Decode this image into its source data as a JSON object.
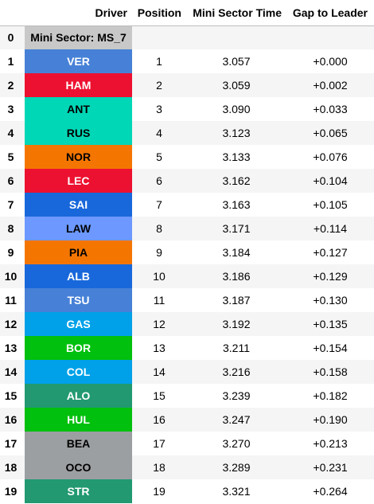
{
  "header": {
    "driver": "Driver",
    "position": "Position",
    "time": "Mini Sector Time",
    "gap": "Gap to Leader"
  },
  "mini_sector_label": "Mini Sector: MS_7",
  "rows": [
    {
      "index": "1",
      "driver": "VER",
      "position": "1",
      "time": "3.057",
      "gap": "+0.000",
      "bg": "#4781d7",
      "fg": "#ffffff"
    },
    {
      "index": "2",
      "driver": "HAM",
      "position": "2",
      "time": "3.059",
      "gap": "+0.002",
      "bg": "#ed1131",
      "fg": "#ffffff"
    },
    {
      "index": "3",
      "driver": "ANT",
      "position": "3",
      "time": "3.090",
      "gap": "+0.033",
      "bg": "#00d7b6",
      "fg": "#000000"
    },
    {
      "index": "4",
      "driver": "RUS",
      "position": "4",
      "time": "3.123",
      "gap": "+0.065",
      "bg": "#00d7b6",
      "fg": "#000000"
    },
    {
      "index": "5",
      "driver": "NOR",
      "position": "5",
      "time": "3.133",
      "gap": "+0.076",
      "bg": "#f47600",
      "fg": "#000000"
    },
    {
      "index": "6",
      "driver": "LEC",
      "position": "6",
      "time": "3.162",
      "gap": "+0.104",
      "bg": "#ed1131",
      "fg": "#ffffff"
    },
    {
      "index": "7",
      "driver": "SAI",
      "position": "7",
      "time": "3.163",
      "gap": "+0.105",
      "bg": "#1868db",
      "fg": "#ffffff"
    },
    {
      "index": "8",
      "driver": "LAW",
      "position": "8",
      "time": "3.171",
      "gap": "+0.114",
      "bg": "#6c98ff",
      "fg": "#000000"
    },
    {
      "index": "9",
      "driver": "PIA",
      "position": "9",
      "time": "3.184",
      "gap": "+0.127",
      "bg": "#f47600",
      "fg": "#000000"
    },
    {
      "index": "10",
      "driver": "ALB",
      "position": "10",
      "time": "3.186",
      "gap": "+0.129",
      "bg": "#1868db",
      "fg": "#ffffff"
    },
    {
      "index": "11",
      "driver": "TSU",
      "position": "11",
      "time": "3.187",
      "gap": "+0.130",
      "bg": "#4781d7",
      "fg": "#ffffff"
    },
    {
      "index": "12",
      "driver": "GAS",
      "position": "12",
      "time": "3.192",
      "gap": "+0.135",
      "bg": "#00a1e8",
      "fg": "#ffffff"
    },
    {
      "index": "13",
      "driver": "BOR",
      "position": "13",
      "time": "3.211",
      "gap": "+0.154",
      "bg": "#01c00e",
      "fg": "#ffffff"
    },
    {
      "index": "14",
      "driver": "COL",
      "position": "14",
      "time": "3.216",
      "gap": "+0.158",
      "bg": "#00a1e8",
      "fg": "#ffffff"
    },
    {
      "index": "15",
      "driver": "ALO",
      "position": "15",
      "time": "3.239",
      "gap": "+0.182",
      "bg": "#229971",
      "fg": "#ffffff"
    },
    {
      "index": "16",
      "driver": "HUL",
      "position": "16",
      "time": "3.247",
      "gap": "+0.190",
      "bg": "#01c00e",
      "fg": "#ffffff"
    },
    {
      "index": "17",
      "driver": "BEA",
      "position": "17",
      "time": "3.270",
      "gap": "+0.213",
      "bg": "#9c9fa2",
      "fg": "#000000"
    },
    {
      "index": "18",
      "driver": "OCO",
      "position": "18",
      "time": "3.289",
      "gap": "+0.231",
      "bg": "#9c9fa2",
      "fg": "#000000"
    },
    {
      "index": "19",
      "driver": "STR",
      "position": "19",
      "time": "3.321",
      "gap": "+0.264",
      "bg": "#229971",
      "fg": "#ffffff"
    }
  ]
}
